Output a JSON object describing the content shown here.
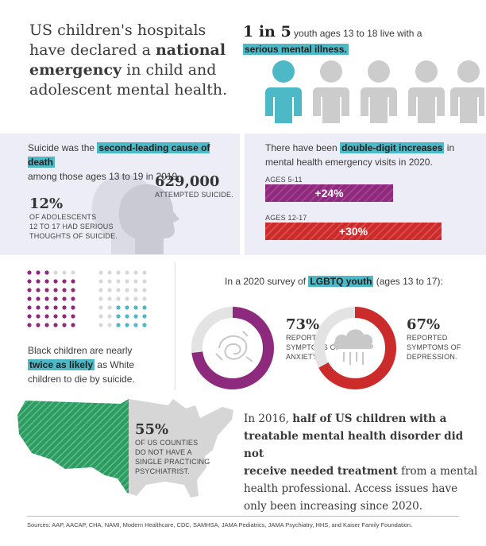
{
  "header": {
    "line1": "US children's hospitals",
    "line2_pre": "have declared a ",
    "line2_bold": "national",
    "line3_bold": "emergency",
    "line3_post": " in child and",
    "line4": "adolescent mental health."
  },
  "one_in_five": {
    "big": "1 in 5",
    "text": " youth ages 13 to 18 live with a",
    "highlight": "serious mental illness.",
    "colors": {
      "highlight": "#4db8c6",
      "grey": "#cccccc"
    }
  },
  "suicide": {
    "pre": "Suicide was the ",
    "highlight": "second-leading cause of death",
    "post": "among those ages 13 to 19 in 2019.",
    "stat1_value": "629,000",
    "stat1_label": "ATTEMPTED SUICIDE.",
    "stat2_value": "12%",
    "stat2_line1": "OF ADOLESCENTS",
    "stat2_line2": "12 TO 17 HAD SERIOUS",
    "stat2_line3": "THOUGHTS OF SUICIDE."
  },
  "er_visits": {
    "pre": "There have been ",
    "highlight": "double-digit increases",
    "post_a": " in",
    "post_b": "mental health emergency visits in 2020.",
    "group1_label": "AGES 5-11",
    "group1_value": "+24%",
    "group2_label": "AGES 12-17",
    "group2_value": "+30%",
    "colors": {
      "group1": "#8e2a7e",
      "group2": "#cc2b2b"
    }
  },
  "black_children": {
    "line1": "Black children are nearly",
    "highlight": "twice as likely",
    "post": " as White",
    "line3": "children to die by suicide."
  },
  "lgbtq": {
    "pre": "In a 2020 survey of ",
    "highlight": "LGBTQ youth",
    "post": " (ages 13 to 17):",
    "anxiety_value": "73%",
    "anxiety_l1": "REPORTED",
    "anxiety_l2": "SYMPTOMS OF",
    "anxiety_l3": "ANXIETY.",
    "depression_value": "67%",
    "depression_l1": "REPORTED",
    "depression_l2": "SYMPTOMS OF",
    "depression_l3": "DEPRESSION.",
    "anxiety_fraction": 0.73,
    "depression_fraction": 0.67,
    "colors": {
      "anxiety": "#8e2a7e",
      "depression": "#cc2b2b",
      "track": "#e3e3e3"
    }
  },
  "counties": {
    "value": "55%",
    "l1": "OF US COUNTIES",
    "l2": "DO NOT HAVE A",
    "l3": "SINGLE PRACTICING",
    "l4": "PSYCHIATRIST.",
    "colors": {
      "map": "#2e9b63",
      "bg": "#dcdcdc"
    }
  },
  "treatment": {
    "l1": "In 2016, ",
    "l1_bold": "half of US children with a",
    "l2_bold": "treatable mental health disorder did not",
    "l3_bold": "receive needed treatment",
    "l3_post": " from a mental",
    "l4": "health professional. Access issues have",
    "l5": "only been increasing since 2020."
  },
  "sources": "Sources: AAP, AACAP, CHA, NAMI, Modern Healthcare, CDC, SAMHSA, JAMA Pediatrics, JAMA Psychiatry, HHS, and Kaiser Family Foundation."
}
